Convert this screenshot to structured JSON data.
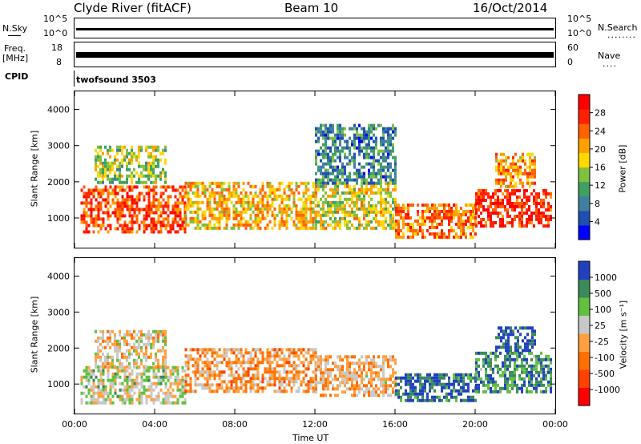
{
  "header": {
    "station": "Clyde River (fitACF)",
    "beam": "Beam 10",
    "date": "16/Oct/2014"
  },
  "nsky_panel": {
    "left_label": "N.Sky",
    "right_label": "N.Search",
    "right_dots": "........",
    "left_ticks": [
      "10^5",
      "10^0"
    ],
    "right_ticks": [
      "10^5",
      "10^0"
    ]
  },
  "freq_panel": {
    "left_label_1": "Freq.",
    "left_label_2": "[MHz]",
    "right_label": "Nave",
    "right_dots": "....",
    "left_ticks": [
      "18",
      "8"
    ],
    "right_ticks": [
      "60",
      "0"
    ]
  },
  "cpid": {
    "label": "CPID",
    "value": "twofsound 3503"
  },
  "chart_data": [
    {
      "type": "heatmap",
      "name": "power",
      "ylabel": "Slant Range [km]",
      "xlabel": "Time UT",
      "x_ticks": [
        "00:00",
        "04:00",
        "08:00",
        "12:00",
        "16:00",
        "20:00",
        "00:00"
      ],
      "xlim_hours": [
        0,
        24
      ],
      "y_ticks": [
        "1000",
        "2000",
        "3000",
        "4000"
      ],
      "ylim_km": [
        180,
        4500
      ],
      "colorbar": {
        "label": "Power [dB]",
        "ticks": [
          "28",
          "24",
          "20",
          "16",
          "12",
          "8",
          "4"
        ],
        "range": [
          0,
          30
        ],
        "colors": [
          "#0000ff",
          "#1f4fb0",
          "#3f7f9f",
          "#3fa060",
          "#7fc040",
          "#ffd800",
          "#ffa000",
          "#ff6000",
          "#ff2000",
          "#ff0000"
        ]
      },
      "regions": [
        {
          "t": [
            0.3,
            5.5
          ],
          "r": [
            600,
            1900
          ],
          "value_db": 24
        },
        {
          "t": [
            1.0,
            4.5
          ],
          "r": [
            2000,
            3000
          ],
          "value_db": 14
        },
        {
          "t": [
            5.5,
            12.0
          ],
          "r": [
            700,
            2000
          ],
          "value_db": 18
        },
        {
          "t": [
            12.0,
            16.0
          ],
          "r": [
            700,
            2000
          ],
          "value_db": 16
        },
        {
          "t": [
            16.0,
            20.0
          ],
          "r": [
            500,
            1400
          ],
          "value_db": 22
        },
        {
          "t": [
            20.0,
            23.8
          ],
          "r": [
            800,
            1800
          ],
          "value_db": 26
        },
        {
          "t": [
            21.0,
            23.0
          ],
          "r": [
            1900,
            2800
          ],
          "value_db": 20
        },
        {
          "t": [
            12.0,
            16.0
          ],
          "r": [
            2000,
            3600
          ],
          "value_db": 8
        }
      ]
    },
    {
      "type": "heatmap",
      "name": "velocity",
      "ylabel": "Slant Range [km]",
      "xlabel": "Time UT",
      "x_ticks": [
        "00:00",
        "04:00",
        "08:00",
        "12:00",
        "16:00",
        "20:00",
        "00:00"
      ],
      "xlim_hours": [
        0,
        24
      ],
      "y_ticks": [
        "1000",
        "2000",
        "3000",
        "4000"
      ],
      "ylim_km": [
        180,
        4500
      ],
      "colorbar": {
        "label": "Velocity [m s⁻¹]",
        "ticks": [
          "1000",
          "500",
          "100",
          "25",
          "-25",
          "-100",
          "-500",
          "-1000"
        ],
        "range": [
          -1000,
          1000
        ],
        "colors": [
          "#ff0000",
          "#ff4000",
          "#ff7000",
          "#ffa040",
          "#c8c8c8",
          "#60c040",
          "#3a8a5a",
          "#2040c0"
        ]
      },
      "regions": [
        {
          "t": [
            0.3,
            5.5
          ],
          "r": [
            500,
            1500
          ],
          "value_ms": 200
        },
        {
          "t": [
            1.0,
            4.5
          ],
          "r": [
            1500,
            2500
          ],
          "value_ms": 0
        },
        {
          "t": [
            5.5,
            12.0
          ],
          "r": [
            800,
            2000
          ],
          "value_ms": -200
        },
        {
          "t": [
            12.0,
            16.0
          ],
          "r": [
            700,
            1800
          ],
          "value_ms": -100
        },
        {
          "t": [
            16.0,
            20.0
          ],
          "r": [
            500,
            1300
          ],
          "value_ms": 800
        },
        {
          "t": [
            20.0,
            23.8
          ],
          "r": [
            800,
            1900
          ],
          "value_ms": 600
        },
        {
          "t": [
            21.0,
            23.0
          ],
          "r": [
            1900,
            2600
          ],
          "value_ms": 900
        }
      ]
    }
  ]
}
